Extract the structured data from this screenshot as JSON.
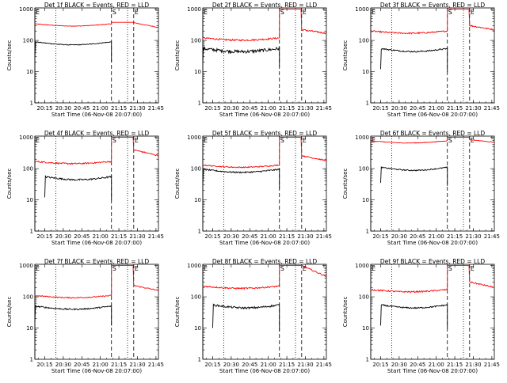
{
  "figure": {
    "panels": [
      {
        "title": "Det 1f BLACK = Events, RED = LLD"
      },
      {
        "title": "Det 2f BLACK = Events, RED = LLD"
      },
      {
        "title": "Det 3f BLACK = Events, RED = LLD"
      },
      {
        "title": "Det 4f BLACK = Events, RED = LLD"
      },
      {
        "title": "Det 5f BLACK = Events, RED = LLD"
      },
      {
        "title": "Det 6f BLACK = Events, RED = LLD"
      },
      {
        "title": "Det 7f BLACK = Events, RED = LLD"
      },
      {
        "title": "Det 8f BLACK = Events, RED = LLD"
      },
      {
        "title": "Det 9f BLACK = Events, RED = LLD"
      }
    ]
  },
  "chart_data": {
    "type": "line",
    "layout": "3x3 grid",
    "scale": "log-y",
    "ylabel": "Counts/sec",
    "xlabel": "Start Time (06-Nov-08 20:07:00)",
    "x_tick_labels": [
      "20:15",
      "20:30",
      "20:45",
      "21:00",
      "21:15",
      "21:30",
      "21:45"
    ],
    "y_tick_labels": [
      "1",
      "10",
      "100",
      "1000"
    ],
    "xlim": [
      "20:07",
      "21:47"
    ],
    "ylim": [
      1,
      1100
    ],
    "series_colors": {
      "events": "#000000",
      "lld": "#ff0000"
    },
    "markers": [
      {
        "time": "20:07",
        "label": "E",
        "style": "solid"
      },
      {
        "time": "20:24",
        "label": "",
        "style": "dotted"
      },
      {
        "time": "21:09",
        "label": "S",
        "style": "dashed"
      },
      {
        "time": "21:22",
        "label": "",
        "style": "dotted"
      },
      {
        "time": "21:27",
        "label": "E",
        "style": "dashed"
      }
    ],
    "panels": [
      {
        "title": "Det 1f BLACK = Events, RED = LLD",
        "events": {
          "start": "20:07",
          "end": "21:09",
          "level": 90,
          "dip": 25,
          "noise": 0.03
        },
        "lld": {
          "level": 340,
          "peak": 380,
          "after": [
            370,
            260
          ],
          "noise": 0.02
        }
      },
      {
        "title": "Det 2f BLACK = Events, RED = LLD",
        "events": {
          "start": "20:07",
          "end": "21:09",
          "level": 55,
          "dip": 18,
          "noise": 0.12
        },
        "lld": {
          "level": 120,
          "peak": 1000,
          "after": [
            220,
            170
          ],
          "noise": 0.06
        }
      },
      {
        "title": "Det 3f BLACK = Events, RED = LLD",
        "events": {
          "start": "20:15",
          "end": "21:09",
          "level": 55,
          "dip": 12,
          "noise": 0.05
        },
        "lld": {
          "level": 200,
          "peak": 1000,
          "after": [
            300,
            220
          ],
          "noise": 0.05
        }
      },
      {
        "title": "Det 4f BLACK = Events, RED = LLD",
        "events": {
          "start": "20:15",
          "end": "21:09",
          "level": 55,
          "dip": 12,
          "noise": 0.06
        },
        "lld": {
          "level": 170,
          "peak": 1000,
          "after": [
            400,
            260
          ],
          "noise": 0.05
        }
      },
      {
        "title": "Det 5f BLACK = Events, RED = LLD",
        "events": {
          "start": "20:07",
          "end": "21:09",
          "level": 95,
          "dip": 28,
          "noise": 0.05
        },
        "lld": {
          "level": 130,
          "peak": 1000,
          "after": [
            260,
            180
          ],
          "noise": 0.04
        }
      },
      {
        "title": "Det 6f BLACK = Events, RED = LLD",
        "events": {
          "start": "20:15",
          "end": "21:09",
          "level": 110,
          "dip": 35,
          "noise": 0.04
        },
        "lld": {
          "level": 780,
          "peak": 1000,
          "after": [
            850,
            700
          ],
          "noise": 0.02
        }
      },
      {
        "title": "Det 7f BLACK = Events, RED = LLD",
        "events": {
          "start": "20:07",
          "end": "21:09",
          "level": 50,
          "dip": 15,
          "noise": 0.05
        },
        "lld": {
          "level": 110,
          "peak": 1000,
          "after": [
            230,
            160
          ],
          "noise": 0.04
        }
      },
      {
        "title": "Det 8f BLACK = Events, RED = LLD",
        "events": {
          "start": "20:15",
          "end": "21:09",
          "level": 55,
          "dip": 10,
          "noise": 0.07
        },
        "lld": {
          "level": 220,
          "peak": 1000,
          "after": [
            1000,
            450
          ],
          "noise": 0.05
        }
      },
      {
        "title": "Det 9f BLACK = Events, RED = LLD",
        "events": {
          "start": "20:15",
          "end": "21:09",
          "level": 55,
          "dip": 12,
          "noise": 0.05
        },
        "lld": {
          "level": 170,
          "peak": 1000,
          "after": [
            300,
            200
          ],
          "noise": 0.05
        }
      }
    ]
  }
}
